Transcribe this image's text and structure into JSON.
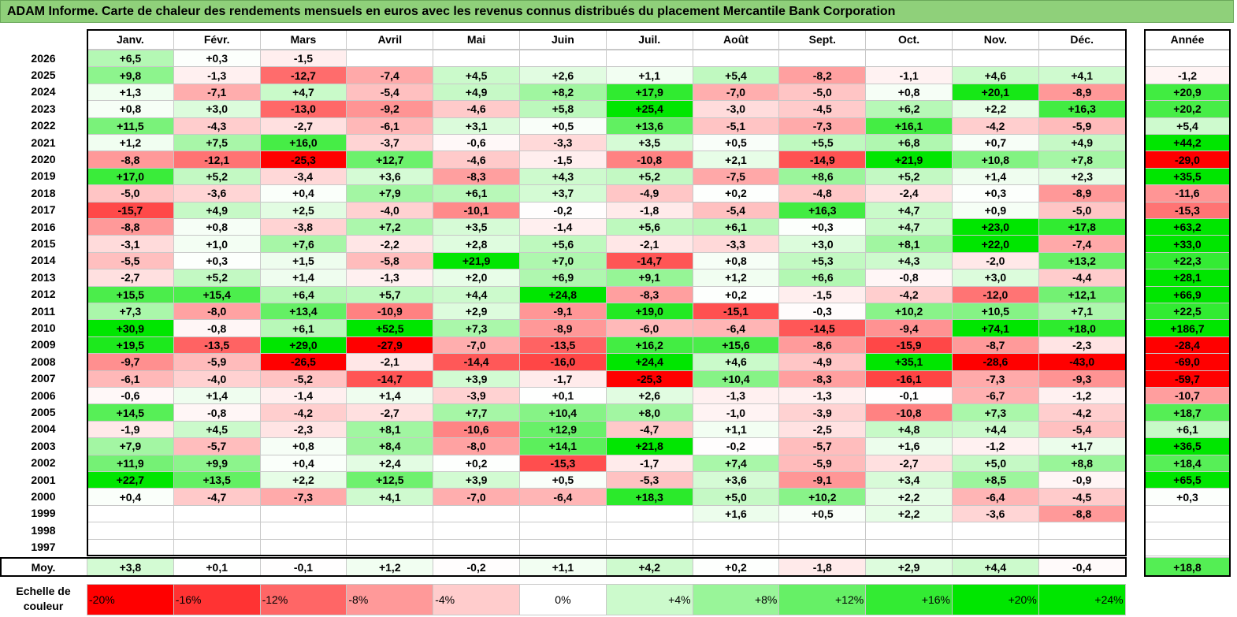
{
  "title": "ADAM Informe. Carte de chaleur des rendements mensuels en euros avec les revenus connus distribués du placement Mercantile Bank Corporation",
  "chart_data": {
    "type": "heatmap",
    "months": [
      "Janv.",
      "Févr.",
      "Mars",
      "Avril",
      "Mai",
      "Juin",
      "Juil.",
      "Août",
      "Sept.",
      "Oct.",
      "Nov.",
      "Déc."
    ],
    "year_header": "Année",
    "rows": [
      {
        "year": "2026",
        "values": [
          "+6,5",
          "+0,3",
          "-1,5",
          "",
          "",
          "",
          "",
          "",
          "",
          "",
          "",
          ""
        ],
        "annual": ""
      },
      {
        "year": "2025",
        "values": [
          "+9,8",
          "-1,3",
          "-12,7",
          "-7,4",
          "+4,5",
          "+2,6",
          "+1,1",
          "+5,4",
          "-8,2",
          "-1,1",
          "+4,6",
          "+4,1"
        ],
        "annual": "-1,2"
      },
      {
        "year": "2024",
        "values": [
          "+1,3",
          "-7,1",
          "+4,7",
          "-5,4",
          "+4,9",
          "+8,2",
          "+17,9",
          "-7,0",
          "-5,0",
          "+0,8",
          "+20,1",
          "-8,9"
        ],
        "annual": "+20,9"
      },
      {
        "year": "2023",
        "values": [
          "+0,8",
          "+3,0",
          "-13,0",
          "-9,2",
          "-4,6",
          "+5,8",
          "+25,4",
          "-3,0",
          "-4,5",
          "+6,2",
          "+2,2",
          "+16,3"
        ],
        "annual": "+20,2"
      },
      {
        "year": "2022",
        "values": [
          "+11,5",
          "-4,3",
          "-2,7",
          "-6,1",
          "+3,1",
          "+0,5",
          "+13,6",
          "-5,1",
          "-7,3",
          "+16,1",
          "-4,2",
          "-5,9"
        ],
        "annual": "+5,4"
      },
      {
        "year": "2021",
        "values": [
          "+1,2",
          "+7,5",
          "+16,0",
          "-3,7",
          "-0,6",
          "-3,3",
          "+3,5",
          "+0,5",
          "+5,5",
          "+6,8",
          "+0,7",
          "+4,9"
        ],
        "annual": "+44,2"
      },
      {
        "year": "2020",
        "values": [
          "-8,8",
          "-12,1",
          "-25,3",
          "+12,7",
          "-4,6",
          "-1,5",
          "-10,8",
          "+2,1",
          "-14,9",
          "+21,9",
          "+10,8",
          "+7,8"
        ],
        "annual": "-29,0"
      },
      {
        "year": "2019",
        "values": [
          "+17,0",
          "+5,2",
          "-3,4",
          "+3,6",
          "-8,3",
          "+4,3",
          "+5,2",
          "-7,5",
          "+8,6",
          "+5,2",
          "+1,4",
          "+2,3"
        ],
        "annual": "+35,5"
      },
      {
        "year": "2018",
        "values": [
          "-5,0",
          "-3,6",
          "+0,4",
          "+7,9",
          "+6,1",
          "+3,7",
          "-4,9",
          "+0,2",
          "-4,8",
          "-2,4",
          "+0,3",
          "-8,9"
        ],
        "annual": "-11,6"
      },
      {
        "year": "2017",
        "values": [
          "-15,7",
          "+4,9",
          "+2,5",
          "-4,0",
          "-10,1",
          "-0,2",
          "-1,8",
          "-5,4",
          "+16,3",
          "+4,7",
          "+0,9",
          "-5,0"
        ],
        "annual": "-15,3"
      },
      {
        "year": "2016",
        "values": [
          "-8,8",
          "+0,8",
          "-3,8",
          "+7,2",
          "+3,5",
          "-1,4",
          "+5,6",
          "+6,1",
          "+0,3",
          "+4,7",
          "+23,0",
          "+17,8"
        ],
        "annual": "+63,2"
      },
      {
        "year": "2015",
        "values": [
          "-3,1",
          "+1,0",
          "+7,6",
          "-2,2",
          "+2,8",
          "+5,6",
          "-2,1",
          "-3,3",
          "+3,0",
          "+8,1",
          "+22,0",
          "-7,4"
        ],
        "annual": "+33,0"
      },
      {
        "year": "2014",
        "values": [
          "-5,5",
          "+0,3",
          "+1,5",
          "-5,8",
          "+21,9",
          "+7,0",
          "-14,7",
          "+0,8",
          "+5,3",
          "+4,3",
          "-2,0",
          "+13,2"
        ],
        "annual": "+22,3"
      },
      {
        "year": "2013",
        "values": [
          "-2,7",
          "+5,2",
          "+1,4",
          "-1,3",
          "+2,0",
          "+6,9",
          "+9,1",
          "+1,2",
          "+6,6",
          "-0,8",
          "+3,0",
          "-4,4"
        ],
        "annual": "+28,1"
      },
      {
        "year": "2012",
        "values": [
          "+15,5",
          "+15,4",
          "+6,4",
          "+5,7",
          "+4,4",
          "+24,8",
          "-8,3",
          "+0,2",
          "-1,5",
          "-4,2",
          "-12,0",
          "+12,1"
        ],
        "annual": "+66,9"
      },
      {
        "year": "2011",
        "values": [
          "+7,3",
          "-8,0",
          "+13,4",
          "-10,9",
          "+2,9",
          "-9,1",
          "+19,0",
          "-15,1",
          "-0,3",
          "+10,2",
          "+10,5",
          "+7,1"
        ],
        "annual": "+22,5"
      },
      {
        "year": "2010",
        "values": [
          "+30,9",
          "-0,8",
          "+6,1",
          "+52,5",
          "+7,3",
          "-8,9",
          "-6,0",
          "-6,4",
          "-14,5",
          "-9,4",
          "+74,1",
          "+18,0"
        ],
        "annual": "+186,7"
      },
      {
        "year": "2009",
        "values": [
          "+19,5",
          "-13,5",
          "+29,0",
          "-27,9",
          "-7,0",
          "-13,5",
          "+16,2",
          "+15,6",
          "-8,6",
          "-15,9",
          "-8,7",
          "-2,3"
        ],
        "annual": "-28,4"
      },
      {
        "year": "2008",
        "values": [
          "-9,7",
          "-5,9",
          "-26,5",
          "-2,1",
          "-14,4",
          "-16,0",
          "+24,4",
          "+4,6",
          "-4,9",
          "+35,1",
          "-28,6",
          "-43,0"
        ],
        "annual": "-69,0"
      },
      {
        "year": "2007",
        "values": [
          "-6,1",
          "-4,0",
          "-5,2",
          "-14,7",
          "+3,9",
          "-1,7",
          "-25,3",
          "+10,4",
          "-8,3",
          "-16,1",
          "-7,3",
          "-9,3"
        ],
        "annual": "-59,7"
      },
      {
        "year": "2006",
        "values": [
          "-0,6",
          "+1,4",
          "-1,4",
          "+1,4",
          "-3,9",
          "+0,1",
          "+2,6",
          "-1,3",
          "-1,3",
          "-0,1",
          "-6,7",
          "-1,2"
        ],
        "annual": "-10,7"
      },
      {
        "year": "2005",
        "values": [
          "+14,5",
          "-0,8",
          "-4,2",
          "-2,7",
          "+7,7",
          "+10,4",
          "+8,0",
          "-1,0",
          "-3,9",
          "-10,8",
          "+7,3",
          "-4,2"
        ],
        "annual": "+18,7"
      },
      {
        "year": "2004",
        "values": [
          "-1,9",
          "+4,5",
          "-2,3",
          "+8,1",
          "-10,6",
          "+12,9",
          "-4,7",
          "+1,1",
          "-2,5",
          "+4,8",
          "+4,4",
          "-5,4"
        ],
        "annual": "+6,1"
      },
      {
        "year": "2003",
        "values": [
          "+7,9",
          "-5,7",
          "+0,8",
          "+8,4",
          "-8,0",
          "+14,1",
          "+21,8",
          "-0,2",
          "-5,7",
          "+1,6",
          "-1,2",
          "+1,7"
        ],
        "annual": "+36,5"
      },
      {
        "year": "2002",
        "values": [
          "+11,9",
          "+9,9",
          "+0,4",
          "+2,4",
          "+0,2",
          "-15,3",
          "-1,7",
          "+7,4",
          "-5,9",
          "-2,7",
          "+5,0",
          "+8,8"
        ],
        "annual": "+18,4"
      },
      {
        "year": "2001",
        "values": [
          "+22,7",
          "+13,5",
          "+2,2",
          "+12,5",
          "+3,9",
          "+0,5",
          "-5,3",
          "+3,6",
          "-9,1",
          "+3,4",
          "+8,5",
          "-0,9"
        ],
        "annual": "+65,5"
      },
      {
        "year": "2000",
        "values": [
          "+0,4",
          "-4,7",
          "-7,3",
          "+4,1",
          "-7,0",
          "-6,4",
          "+18,3",
          "+5,0",
          "+10,2",
          "+2,2",
          "-6,4",
          "-4,5"
        ],
        "annual": "+0,3"
      },
      {
        "year": "1999",
        "values": [
          "",
          "",
          "",
          "",
          "",
          "",
          "",
          "+1,6",
          "+0,5",
          "+2,2",
          "-3,6",
          "-8,8"
        ],
        "annual": ""
      },
      {
        "year": "1998",
        "values": [
          "",
          "",
          "",
          "",
          "",
          "",
          "",
          "",
          "",
          "",
          "",
          ""
        ],
        "annual": ""
      },
      {
        "year": "1997",
        "values": [
          "",
          "",
          "",
          "",
          "",
          "",
          "",
          "",
          "",
          "",
          "",
          ""
        ],
        "annual": ""
      }
    ],
    "average": {
      "label": "Moy.",
      "values": [
        "+3,8",
        "+0,1",
        "-0,1",
        "+1,2",
        "-0,2",
        "+1,1",
        "+4,2",
        "+0,2",
        "-1,8",
        "+2,9",
        "+4,4",
        "-0,4"
      ],
      "annual": "+18,8"
    },
    "scale": {
      "label_line1": "Echelle de",
      "label_line2": "couleur",
      "stops": [
        "-20%",
        "-16%",
        "-12%",
        "-8%",
        "-4%",
        "0%",
        "+4%",
        "+8%",
        "+12%",
        "+16%",
        "+20%",
        "+24%"
      ],
      "stop_values": [
        -20,
        -16,
        -12,
        -8,
        -4,
        0,
        4,
        8,
        12,
        16,
        20,
        24
      ]
    },
    "colors": {
      "negative": "#ff0000",
      "positive": "#00e000",
      "neutral": "#ffffff",
      "title_bg": "#8fd07a"
    }
  }
}
